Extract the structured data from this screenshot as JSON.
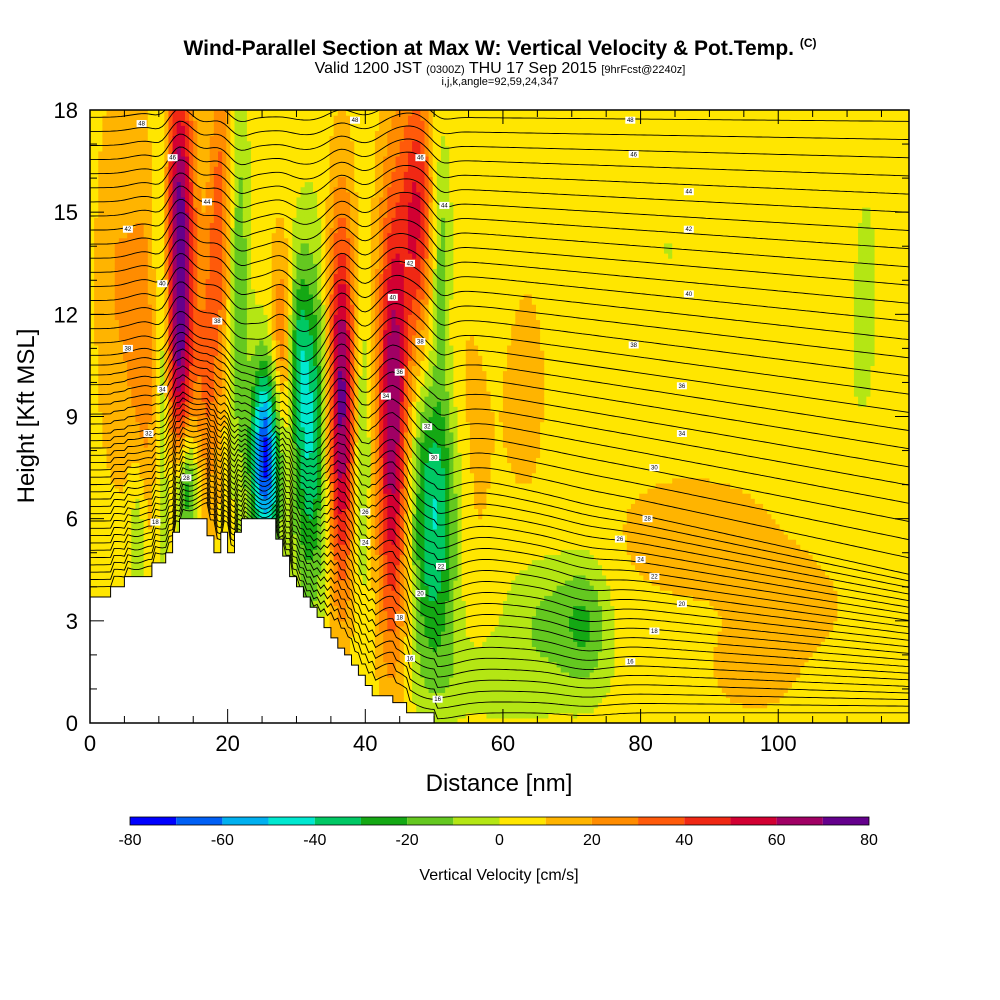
{
  "header": {
    "title": "Wind-Parallel Section at Max W: Vertical Velocity & Pot.Temp.",
    "title_mark": "(C)",
    "subtitle_main": "Valid 1200 JST",
    "subtitle_utc": "(0300Z)",
    "subtitle_date": "THU 17 Sep 2015",
    "subtitle_fcst": "[9hrFcst@2240z]",
    "info": "i,j,k,angle=92,59,24,347"
  },
  "chart_data": {
    "type": "heatmap",
    "title": "Wind-Parallel Section at Max W: Vertical Velocity & Pot.Temp.",
    "xlabel": "Distance [nm]",
    "ylabel": "Height [Kft MSL]",
    "xlim": [
      0,
      119
    ],
    "ylim": [
      0,
      18
    ],
    "x_ticks": [
      0,
      20,
      40,
      60,
      80,
      100
    ],
    "y_ticks": [
      0,
      3,
      6,
      9,
      12,
      15,
      18
    ],
    "x_tick_labels": [
      "0",
      "20",
      "40",
      "60",
      "80",
      "100"
    ],
    "y_tick_labels": [
      "0",
      "3",
      "6",
      "9",
      "12",
      "15",
      "18"
    ],
    "colorbar": {
      "label": "Vertical Velocity [cm/s]",
      "min": -80,
      "max": 80,
      "step": 10,
      "tick_labels": [
        "-80",
        "-60",
        "-40",
        "-20",
        "0",
        "20",
        "40",
        "60",
        "80"
      ],
      "colors": [
        "#0000ff",
        "#005ff5",
        "#00b0f0",
        "#00e8d0",
        "#00c864",
        "#14a814",
        "#64c820",
        "#b4e614",
        "#ffe600",
        "#ffb400",
        "#ff8c00",
        "#ff5a0a",
        "#f02814",
        "#d20032",
        "#a00064",
        "#64008c"
      ]
    },
    "background_value": 5,
    "terrain": [
      [
        0,
        3.7
      ],
      [
        3,
        3.7
      ],
      [
        3,
        4.0
      ],
      [
        5,
        4.0
      ],
      [
        5,
        4.3
      ],
      [
        9,
        4.3
      ],
      [
        9,
        4.7
      ],
      [
        11,
        4.7
      ],
      [
        11,
        5.0
      ],
      [
        12,
        5.0
      ],
      [
        12,
        5.6
      ],
      [
        13,
        5.6
      ],
      [
        13,
        6.0
      ],
      [
        17,
        6.0
      ],
      [
        17,
        5.5
      ],
      [
        18,
        5.5
      ],
      [
        18,
        5.0
      ],
      [
        19,
        5.0
      ],
      [
        19,
        5.6
      ],
      [
        20,
        5.6
      ],
      [
        20,
        5.0
      ],
      [
        21,
        5.0
      ],
      [
        21,
        5.6
      ],
      [
        22,
        5.6
      ],
      [
        22,
        6.0
      ],
      [
        27,
        6.0
      ],
      [
        27,
        5.4
      ],
      [
        28,
        5.4
      ],
      [
        28,
        4.9
      ],
      [
        29,
        4.9
      ],
      [
        29,
        4.3
      ],
      [
        30,
        4.3
      ],
      [
        30,
        4.0
      ],
      [
        31,
        4.0
      ],
      [
        31,
        3.7
      ],
      [
        32,
        3.7
      ],
      [
        32,
        3.4
      ],
      [
        33,
        3.4
      ],
      [
        33,
        3.1
      ],
      [
        34,
        3.1
      ],
      [
        34,
        2.8
      ],
      [
        35,
        2.8
      ],
      [
        35,
        2.5
      ],
      [
        36,
        2.5
      ],
      [
        36,
        2.2
      ],
      [
        37,
        2.2
      ],
      [
        37,
        2.0
      ],
      [
        38,
        2.0
      ],
      [
        38,
        1.7
      ],
      [
        39,
        1.7
      ],
      [
        39,
        1.4
      ],
      [
        40,
        1.4
      ],
      [
        40,
        1.1
      ],
      [
        41,
        1.1
      ],
      [
        41,
        0.8
      ],
      [
        44,
        0.8
      ],
      [
        44,
        0.6
      ],
      [
        46,
        0.6
      ],
      [
        46,
        0.3
      ],
      [
        50,
        0.3
      ],
      [
        50,
        0
      ]
    ],
    "velocity_features": [
      {
        "x": 13,
        "y": 14.5,
        "sx": 1.5,
        "sy": 3.5,
        "w": 70
      },
      {
        "x": 13,
        "y": 10,
        "sx": 1.2,
        "sy": 2.2,
        "w": 30
      },
      {
        "x": 8,
        "y": 10,
        "sx": 1.6,
        "sy": 4.5,
        "w": 20
      },
      {
        "x": 4,
        "y": 13,
        "sx": 2.2,
        "sy": 4,
        "w": 15
      },
      {
        "x": 19,
        "y": 15,
        "sx": 1.3,
        "sy": 3,
        "w": 30
      },
      {
        "x": 17,
        "y": 10,
        "sx": 1.4,
        "sy": 3,
        "w": 25
      },
      {
        "x": 10.5,
        "y": 12,
        "sx": 0.9,
        "sy": 5,
        "w": -25
      },
      {
        "x": 7,
        "y": 5.5,
        "sx": 1.0,
        "sy": 1.8,
        "w": -22
      },
      {
        "x": 14,
        "y": 7,
        "sx": 1.2,
        "sy": 1.3,
        "w": -40
      },
      {
        "x": 21.5,
        "y": 13,
        "sx": 1.1,
        "sy": 4,
        "w": -25
      },
      {
        "x": 25.5,
        "y": 7.8,
        "sx": 1.5,
        "sy": 2,
        "w": -80
      },
      {
        "x": 32,
        "y": 8.5,
        "sx": 1.8,
        "sy": 3.5,
        "w": -45
      },
      {
        "x": 30,
        "y": 11,
        "sx": 1.1,
        "sy": 2,
        "w": -25
      },
      {
        "x": 28,
        "y": 11,
        "sx": 1.3,
        "sy": 2.2,
        "w": 30
      },
      {
        "x": 36.5,
        "y": 9.5,
        "sx": 1.4,
        "sy": 3.8,
        "w": 70
      },
      {
        "x": 39.5,
        "y": 8,
        "sx": 1.0,
        "sy": 3,
        "w": -20
      },
      {
        "x": 44,
        "y": 9,
        "sx": 1.6,
        "sy": 4.8,
        "w": 65
      },
      {
        "x": 47.5,
        "y": 15,
        "sx": 1.6,
        "sy": 2.8,
        "w": 45
      },
      {
        "x": 51,
        "y": 13.5,
        "sx": 1.0,
        "sy": 2.5,
        "w": -22
      },
      {
        "x": 50,
        "y": 7,
        "sx": 2.5,
        "sy": 2.3,
        "w": -40
      },
      {
        "x": 50,
        "y": 3.5,
        "sx": 2.5,
        "sy": 2,
        "w": -22
      },
      {
        "x": 55,
        "y": 9,
        "sx": 2.5,
        "sy": 4,
        "w": 10
      },
      {
        "x": 66,
        "y": 3.3,
        "sx": 4,
        "sy": 1.2,
        "w": -15
      },
      {
        "x": 72,
        "y": 3,
        "sx": 2.5,
        "sy": 1.3,
        "w": -22
      },
      {
        "x": 60,
        "y": 1.3,
        "sx": 9,
        "sy": 1,
        "w": -10
      },
      {
        "x": 57,
        "y": 14,
        "sx": 3,
        "sy": 3,
        "w": -5
      },
      {
        "x": 88,
        "y": 5.5,
        "sx": 10,
        "sy": 1.6,
        "w": 9
      },
      {
        "x": 104,
        "y": 3.2,
        "sx": 6,
        "sy": 1.2,
        "w": 10
      },
      {
        "x": 97,
        "y": 1.5,
        "sx": 5,
        "sy": 0.9,
        "w": 10
      },
      {
        "x": 110,
        "y": 9,
        "sx": 3,
        "sy": 5,
        "w": -4
      },
      {
        "x": 113,
        "y": 13,
        "sx": 1.5,
        "sy": 3,
        "w": -5
      },
      {
        "x": 84,
        "y": 14,
        "sx": 2.5,
        "sy": 1.5,
        "w": -5
      },
      {
        "x": 92,
        "y": 10.5,
        "sx": 5,
        "sy": 1.5,
        "w": -4
      },
      {
        "x": 63,
        "y": 10,
        "sx": 3,
        "sy": 3,
        "w": 8
      },
      {
        "x": 107,
        "y": 1.6,
        "sx": 6,
        "sy": 1,
        "w": -4
      }
    ],
    "theta_contour_labels": [
      {
        "text": "48",
        "x": 7.5,
        "y": 17.6
      },
      {
        "text": "48",
        "x": 38.5,
        "y": 17.7
      },
      {
        "text": "48",
        "x": 78.5,
        "y": 17.7
      },
      {
        "text": "46",
        "x": 12,
        "y": 16.6
      },
      {
        "text": "46",
        "x": 48,
        "y": 16.6
      },
      {
        "text": "46",
        "x": 79,
        "y": 16.7
      },
      {
        "text": "44",
        "x": 17,
        "y": 15.3
      },
      {
        "text": "44",
        "x": 51.5,
        "y": 15.2
      },
      {
        "text": "44",
        "x": 87,
        "y": 15.6
      },
      {
        "text": "42",
        "x": 5.5,
        "y": 14.5
      },
      {
        "text": "42",
        "x": 46.5,
        "y": 13.5
      },
      {
        "text": "42",
        "x": 87,
        "y": 14.5
      },
      {
        "text": "40",
        "x": 10.5,
        "y": 12.9
      },
      {
        "text": "40",
        "x": 44,
        "y": 12.5
      },
      {
        "text": "40",
        "x": 87,
        "y": 12.6
      },
      {
        "text": "38",
        "x": 18.5,
        "y": 11.8
      },
      {
        "text": "38",
        "x": 5.5,
        "y": 11.0
      },
      {
        "text": "38",
        "x": 48,
        "y": 11.2
      },
      {
        "text": "38",
        "x": 79,
        "y": 11.1
      },
      {
        "text": "36",
        "x": 45,
        "y": 10.3
      },
      {
        "text": "36",
        "x": 86,
        "y": 9.9
      },
      {
        "text": "34",
        "x": 10.5,
        "y": 9.8
      },
      {
        "text": "34",
        "x": 43,
        "y": 9.6
      },
      {
        "text": "34",
        "x": 86,
        "y": 8.5
      },
      {
        "text": "32",
        "x": 8.5,
        "y": 8.5
      },
      {
        "text": "32",
        "x": 49,
        "y": 8.7
      },
      {
        "text": "30",
        "x": 50,
        "y": 7.8
      },
      {
        "text": "30",
        "x": 82,
        "y": 7.5
      },
      {
        "text": "28",
        "x": 14,
        "y": 7.2
      },
      {
        "text": "28",
        "x": 81,
        "y": 6.0
      },
      {
        "text": "26",
        "x": 40,
        "y": 6.2
      },
      {
        "text": "26",
        "x": 77,
        "y": 5.4
      },
      {
        "text": "24",
        "x": 40,
        "y": 5.3
      },
      {
        "text": "24",
        "x": 80,
        "y": 4.8
      },
      {
        "text": "22",
        "x": 51,
        "y": 4.6
      },
      {
        "text": "22",
        "x": 82,
        "y": 4.3
      },
      {
        "text": "20",
        "x": 48,
        "y": 3.8
      },
      {
        "text": "20",
        "x": 86,
        "y": 3.5
      },
      {
        "text": "18",
        "x": 9.5,
        "y": 5.9
      },
      {
        "text": "18",
        "x": 45,
        "y": 3.1
      },
      {
        "text": "18",
        "x": 82,
        "y": 2.7
      },
      {
        "text": "16",
        "x": 46.5,
        "y": 1.9
      },
      {
        "text": "16",
        "x": 78.5,
        "y": 1.8
      },
      {
        "text": "16",
        "x": 50.5,
        "y": 0.7
      }
    ]
  }
}
